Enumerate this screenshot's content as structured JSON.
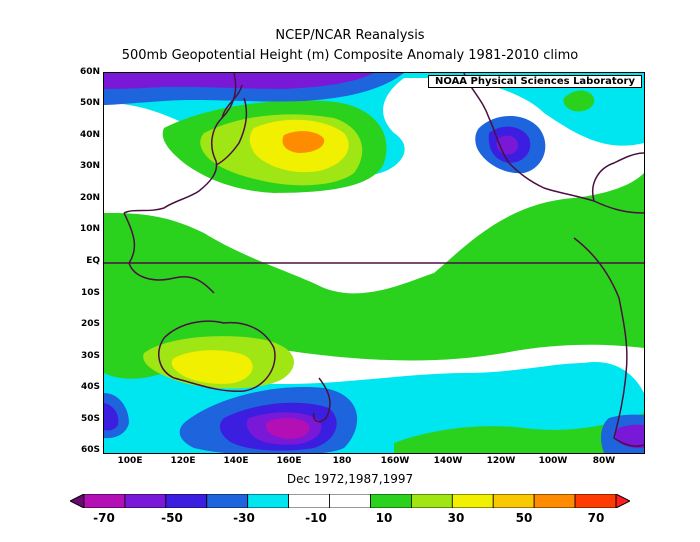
{
  "title_line1": "NCEP/NCAR Reanalysis",
  "title_line2": "500mb Geopotential Height (m) Composite Anomaly 1981-2010 climo",
  "credit": "NOAA Physical Sciences Laboratory",
  "period": "Dec 1972,1987,1997",
  "lat_labels": [
    "60N",
    "50N",
    "40N",
    "30N",
    "20N",
    "10N",
    "EQ",
    "10S",
    "20S",
    "30S",
    "40S",
    "50S",
    "60S"
  ],
  "lon_labels": [
    "100E",
    "120E",
    "140E",
    "160E",
    "180",
    "160W",
    "140W",
    "120W",
    "100W",
    "80W"
  ],
  "colorbar": {
    "labels": [
      "-70",
      "-50",
      "-30",
      "-10",
      "10",
      "30",
      "50",
      "70"
    ],
    "colors": [
      "#6a0a6e",
      "#b40fb4",
      "#7a18d8",
      "#3c1ee0",
      "#1e64dc",
      "#00e6f0",
      "#ffffff",
      "#ffffff",
      "#2ad21e",
      "#a0e614",
      "#f0f000",
      "#fac800",
      "#ff8c00",
      "#ff3c00",
      "#ff1e1e"
    ]
  },
  "colors": {
    "green": "#2ad21e",
    "lime": "#a0e614",
    "yellow": "#f0f000",
    "gold": "#fac800",
    "orange": "#ff8c00",
    "cyan": "#00e6f0",
    "blue": "#1e64dc",
    "indigo": "#3c1ee0",
    "violet": "#7a18d8",
    "magenta": "#b40fb4",
    "purple": "#6a0a6e",
    "coast": "#4a1040"
  }
}
